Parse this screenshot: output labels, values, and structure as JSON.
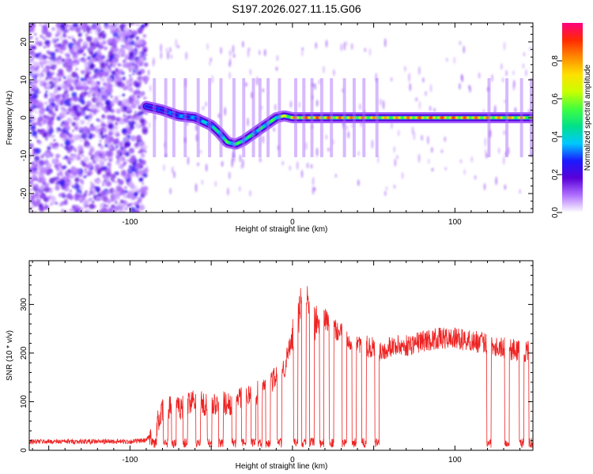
{
  "chart_data": [
    {
      "type": "heatmap",
      "title": "S197.2026.027.11.15.G06",
      "xlabel": "Height of straight line (km)",
      "ylabel": "Frequency (Hz)",
      "xlim": [
        -162,
        148
      ],
      "ylim": [
        -25,
        25
      ],
      "xticks": [
        -100,
        0,
        100
      ],
      "yticks": [
        -20,
        -10,
        0,
        10,
        20
      ],
      "colorbar": {
        "label": "Normalized spectral amplitude",
        "range": [
          0,
          1
        ],
        "ticks": [
          "0.0",
          "0.2",
          "0.4",
          "0.6",
          "0.8"
        ],
        "colors": [
          "#ffffff",
          "#b070ff",
          "#5a00d8",
          "#1a1aff",
          "#00c8ff",
          "#00e08a",
          "#40ff40",
          "#c8ff00",
          "#ffe000",
          "#ff8c00",
          "#ff2a00",
          "#ff0080"
        ]
      },
      "ridge": {
        "description_x_km": [
          -90,
          -80,
          -70,
          -60,
          -50,
          -45,
          -40,
          -35,
          -30,
          -25,
          -20,
          -15,
          -10,
          -5,
          0,
          10,
          20,
          40,
          60,
          80,
          100,
          120,
          140,
          148
        ],
        "frequency_hz": [
          3,
          2,
          0.5,
          0,
          -2,
          -4,
          -6.5,
          -7,
          -6,
          -4.5,
          -3,
          -1.5,
          0,
          0.5,
          0,
          0,
          0,
          0,
          0,
          0,
          0,
          0,
          0,
          0
        ],
        "normalized_amplitude": [
          0.25,
          0.3,
          0.35,
          0.35,
          0.45,
          0.5,
          0.55,
          0.55,
          0.55,
          0.5,
          0.5,
          0.55,
          0.55,
          0.7,
          0.85,
          0.9,
          0.9,
          0.85,
          0.8,
          0.9,
          0.9,
          0.85,
          0.8,
          0.8
        ]
      }
    },
    {
      "type": "line",
      "xlabel": "Height of straight line (km)",
      "ylabel": "SNR (10 * v/v)",
      "xlim": [
        -162,
        148
      ],
      "ylim": [
        0,
        390
      ],
      "xticks": [
        -100,
        0,
        100
      ],
      "yticks": [
        0,
        100,
        200,
        300
      ],
      "series": [
        {
          "name": "SNR",
          "color": "#ee2222",
          "x": [
            -162,
            -140,
            -120,
            -100,
            -90,
            -85,
            -80,
            -75,
            -70,
            -65,
            -60,
            -55,
            -50,
            -45,
            -40,
            -35,
            -30,
            -25,
            -20,
            -15,
            -10,
            -5,
            0,
            3,
            5,
            8,
            10,
            12,
            15,
            20,
            25,
            30,
            35,
            40,
            45,
            50,
            55,
            60,
            70,
            80,
            90,
            100,
            110,
            120,
            130,
            140,
            148
          ],
          "values": [
            18,
            18,
            18,
            18,
            20,
            40,
            80,
            90,
            85,
            95,
            110,
            95,
            90,
            100,
            95,
            100,
            110,
            115,
            120,
            140,
            150,
            170,
            230,
            260,
            300,
            330,
            320,
            270,
            260,
            270,
            250,
            240,
            230,
            225,
            215,
            210,
            205,
            215,
            215,
            225,
            230,
            230,
            225,
            220,
            210,
            205,
            200
          ]
        }
      ],
      "dropouts_x_km": [
        -85,
        -78,
        -73,
        -66,
        -58,
        -51,
        -44,
        -36,
        -30,
        -24,
        -20,
        -15,
        -8,
        2,
        7,
        12,
        18,
        24,
        32,
        38,
        44,
        52,
        121,
        132,
        141,
        147
      ]
    }
  ]
}
